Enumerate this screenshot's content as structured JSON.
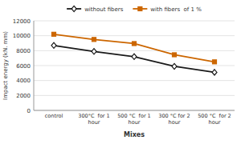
{
  "chart_data": {
    "type": "line",
    "categories": [
      "control",
      "300°C  for 1\nhour",
      "500 °C  for 1\nhour",
      "300 °C for 2\nhour",
      "500 °C  for 2\nhour"
    ],
    "series": [
      {
        "name": "without fibers",
        "color": "#1a1a1a",
        "marker": "diamond",
        "values": [
          8700,
          7900,
          7200,
          5900,
          5100
        ]
      },
      {
        "name": "with fibers  of 1 %",
        "color": "#cc6600",
        "marker": "square",
        "values": [
          10200,
          9500,
          8950,
          7450,
          6500
        ]
      }
    ],
    "xlabel": "Mixes",
    "ylabel": "Impact energy (kN. mm)",
    "ylim": [
      0,
      12000
    ],
    "yticks": [
      0,
      2000,
      4000,
      6000,
      8000,
      10000,
      12000
    ],
    "grid": true,
    "legend": "top"
  }
}
